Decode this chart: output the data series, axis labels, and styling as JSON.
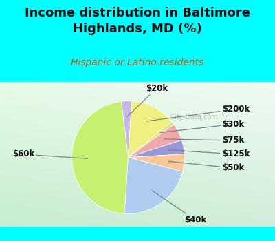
{
  "title": "Income distribution in Baltimore\nHighlands, MD (%)",
  "subtitle": "Hispanic or Latino residents",
  "background_color": "#00FFFF",
  "slices": [
    {
      "label": "$20k",
      "value": 3,
      "color": "#c8b8e8"
    },
    {
      "label": "$200k",
      "value": 13,
      "color": "#f0f080"
    },
    {
      "label": "$30k",
      "value": 1,
      "color": "#d8e888"
    },
    {
      "label": "$75k",
      "value": 5,
      "color": "#f0a8a8"
    },
    {
      "label": "$125k",
      "value": 4,
      "color": "#9898d8"
    },
    {
      "label": "$50k",
      "value": 5,
      "color": "#f8c898"
    },
    {
      "label": "$40k",
      "value": 22,
      "color": "#b0ccf0"
    },
    {
      "label": "$60k",
      "value": 47,
      "color": "#c8f070"
    }
  ],
  "label_fontsize": 8.5,
  "title_fontsize": 13,
  "subtitle_fontsize": 10,
  "title_color": "#111111",
  "subtitle_color": "#e05000",
  "watermark": "City-Data.com",
  "startangle": 97
}
